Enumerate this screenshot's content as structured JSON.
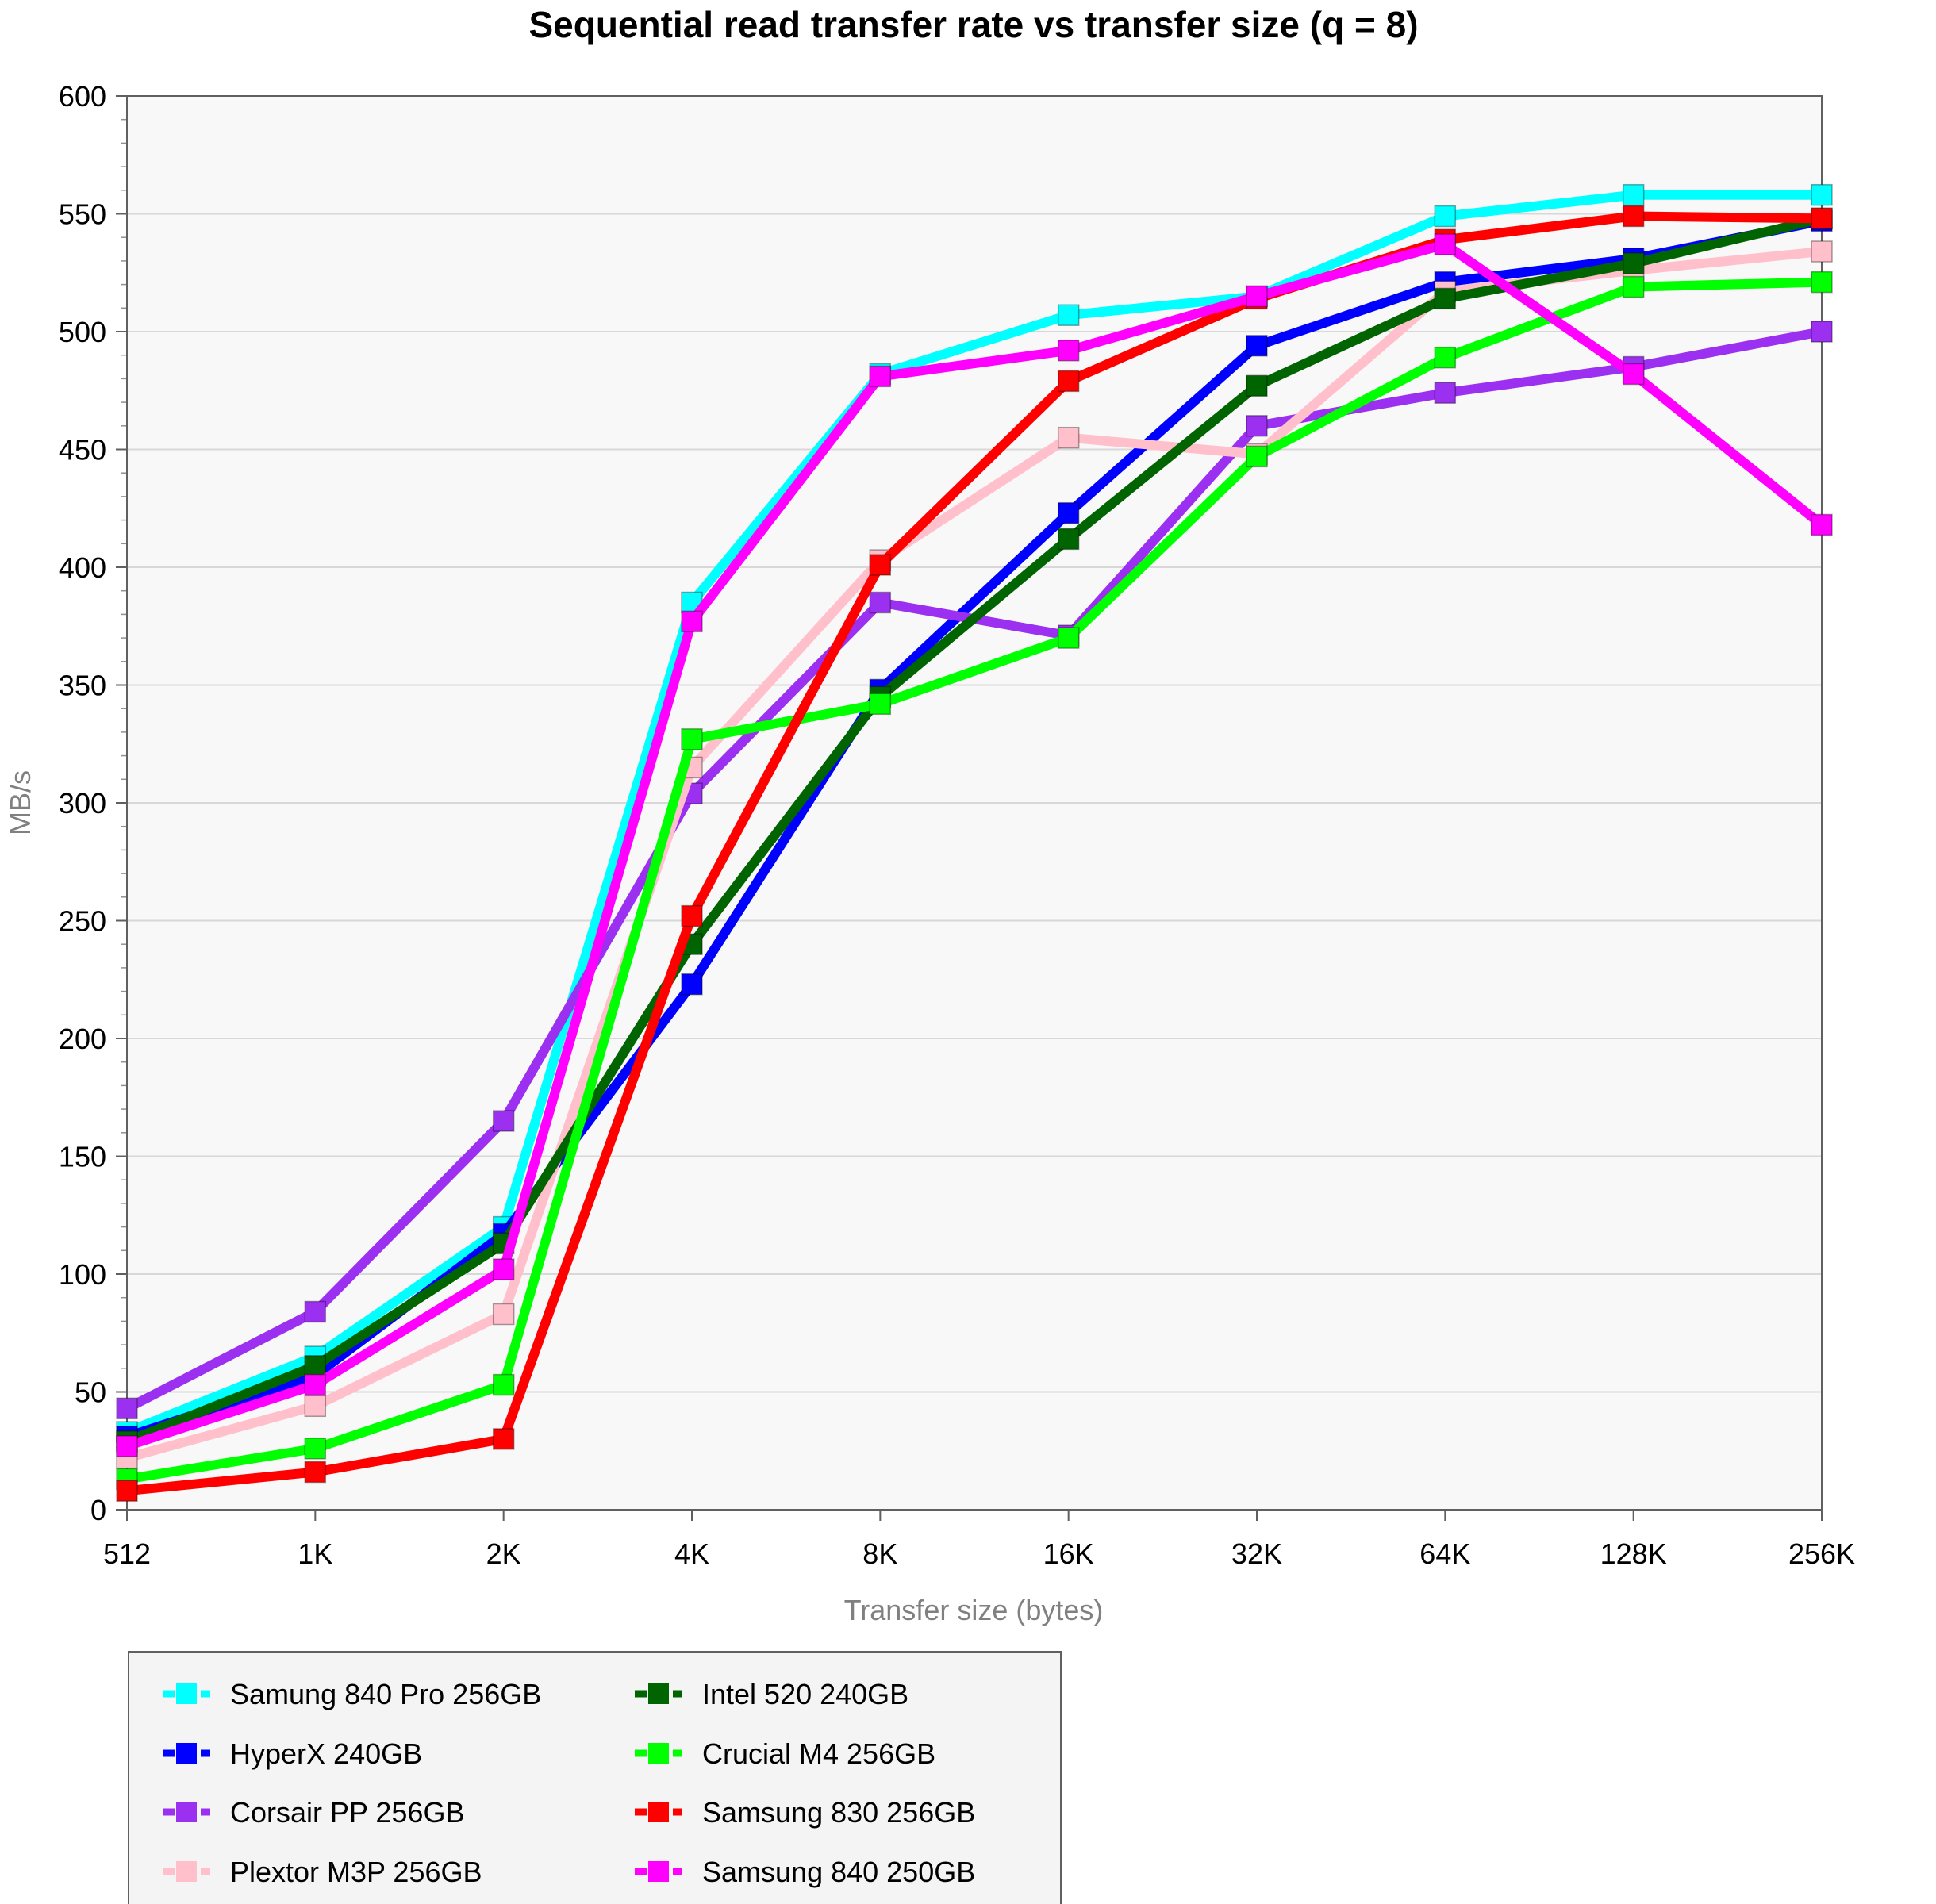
{
  "chart_data": {
    "type": "line",
    "title": "Sequential read transfer rate vs transfer size (q = 8)",
    "xlabel": "Transfer size (bytes)",
    "ylabel": "MB/s",
    "categories": [
      "512",
      "1K",
      "2K",
      "4K",
      "8K",
      "16K",
      "32K",
      "64K",
      "128K",
      "256K"
    ],
    "ylim": [
      0,
      600
    ],
    "yticks": [
      0,
      50,
      100,
      150,
      200,
      250,
      300,
      350,
      400,
      450,
      500,
      550,
      600
    ],
    "grid": true,
    "legend_position": "bottom-left",
    "series": [
      {
        "name": "Samung 840 Pro 256GB",
        "color": "#00FFFF",
        "values": [
          33,
          65,
          120,
          385,
          482,
          507,
          515,
          549,
          558,
          558
        ]
      },
      {
        "name": "HyperX 240GB",
        "color": "#0000FF",
        "values": [
          31,
          57,
          117,
          223,
          348,
          423,
          494,
          521,
          531,
          547
        ]
      },
      {
        "name": "Corsair PP 256GB",
        "color": "#9B30F0",
        "values": [
          43,
          84,
          165,
          304,
          385,
          371,
          460,
          474,
          485,
          500
        ]
      },
      {
        "name": "Plextor M3P 256GB",
        "color": "#FFC0CB",
        "values": [
          22,
          44,
          83,
          315,
          403,
          455,
          448,
          517,
          526,
          534
        ]
      },
      {
        "name": "Intel 520 240GB",
        "color": "#006400",
        "values": [
          29,
          61,
          113,
          240,
          345,
          412,
          477,
          514,
          529,
          548
        ]
      },
      {
        "name": "Crucial M4 256GB",
        "color": "#00FF00",
        "values": [
          13,
          26,
          53,
          327,
          342,
          370,
          447,
          489,
          519,
          521
        ]
      },
      {
        "name": "Samsung 830 256GB",
        "color": "#FF0000",
        "values": [
          8,
          16,
          30,
          252,
          401,
          479,
          514,
          539,
          549,
          548
        ]
      },
      {
        "name": "Samsung 840 250GB",
        "color": "#FF00FF",
        "values": [
          27,
          53,
          102,
          377,
          481,
          492,
          515,
          537,
          482,
          418
        ]
      }
    ],
    "legend_order": [
      [
        "Samung 840 Pro 256GB",
        "Intel 520 240GB"
      ],
      [
        "HyperX 240GB",
        "Crucial M4 256GB"
      ],
      [
        "Corsair PP 256GB",
        "Samsung 830 256GB"
      ],
      [
        "Plextor M3P 256GB",
        "Samsung 840 250GB"
      ]
    ]
  }
}
